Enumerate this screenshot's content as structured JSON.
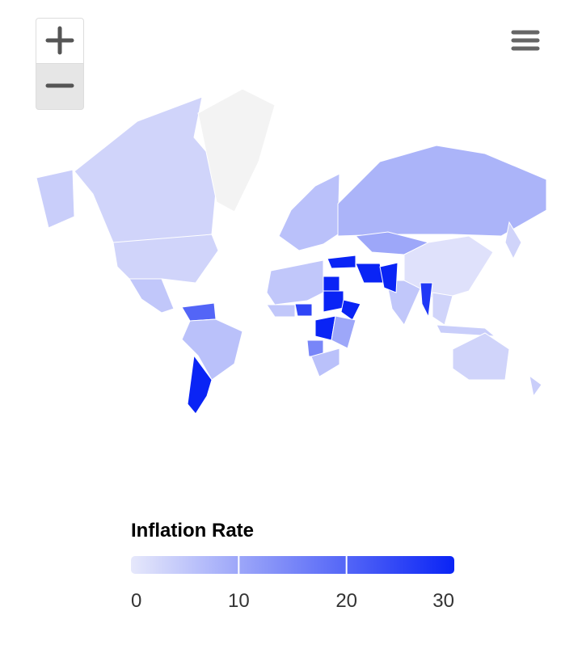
{
  "chart_data": {
    "type": "choropleth",
    "title": "Inflation Rate",
    "values": [
      4,
      3,
      null,
      3,
      5,
      20,
      6,
      30,
      6,
      8,
      10,
      1,
      5,
      30,
      30,
      30,
      27,
      3,
      5,
      30,
      30,
      30,
      25,
      5,
      30,
      15,
      10,
      6,
      4,
      3,
      3,
      4
    ],
    "colors": [
      "#e6e8fb",
      "#0a24f5"
    ],
    "no_data_color": "#f3f3f3",
    "colorbar_lim": [
      0,
      30
    ],
    "colorbar_ticks": [
      0,
      10,
      20,
      30
    ]
  }
}
